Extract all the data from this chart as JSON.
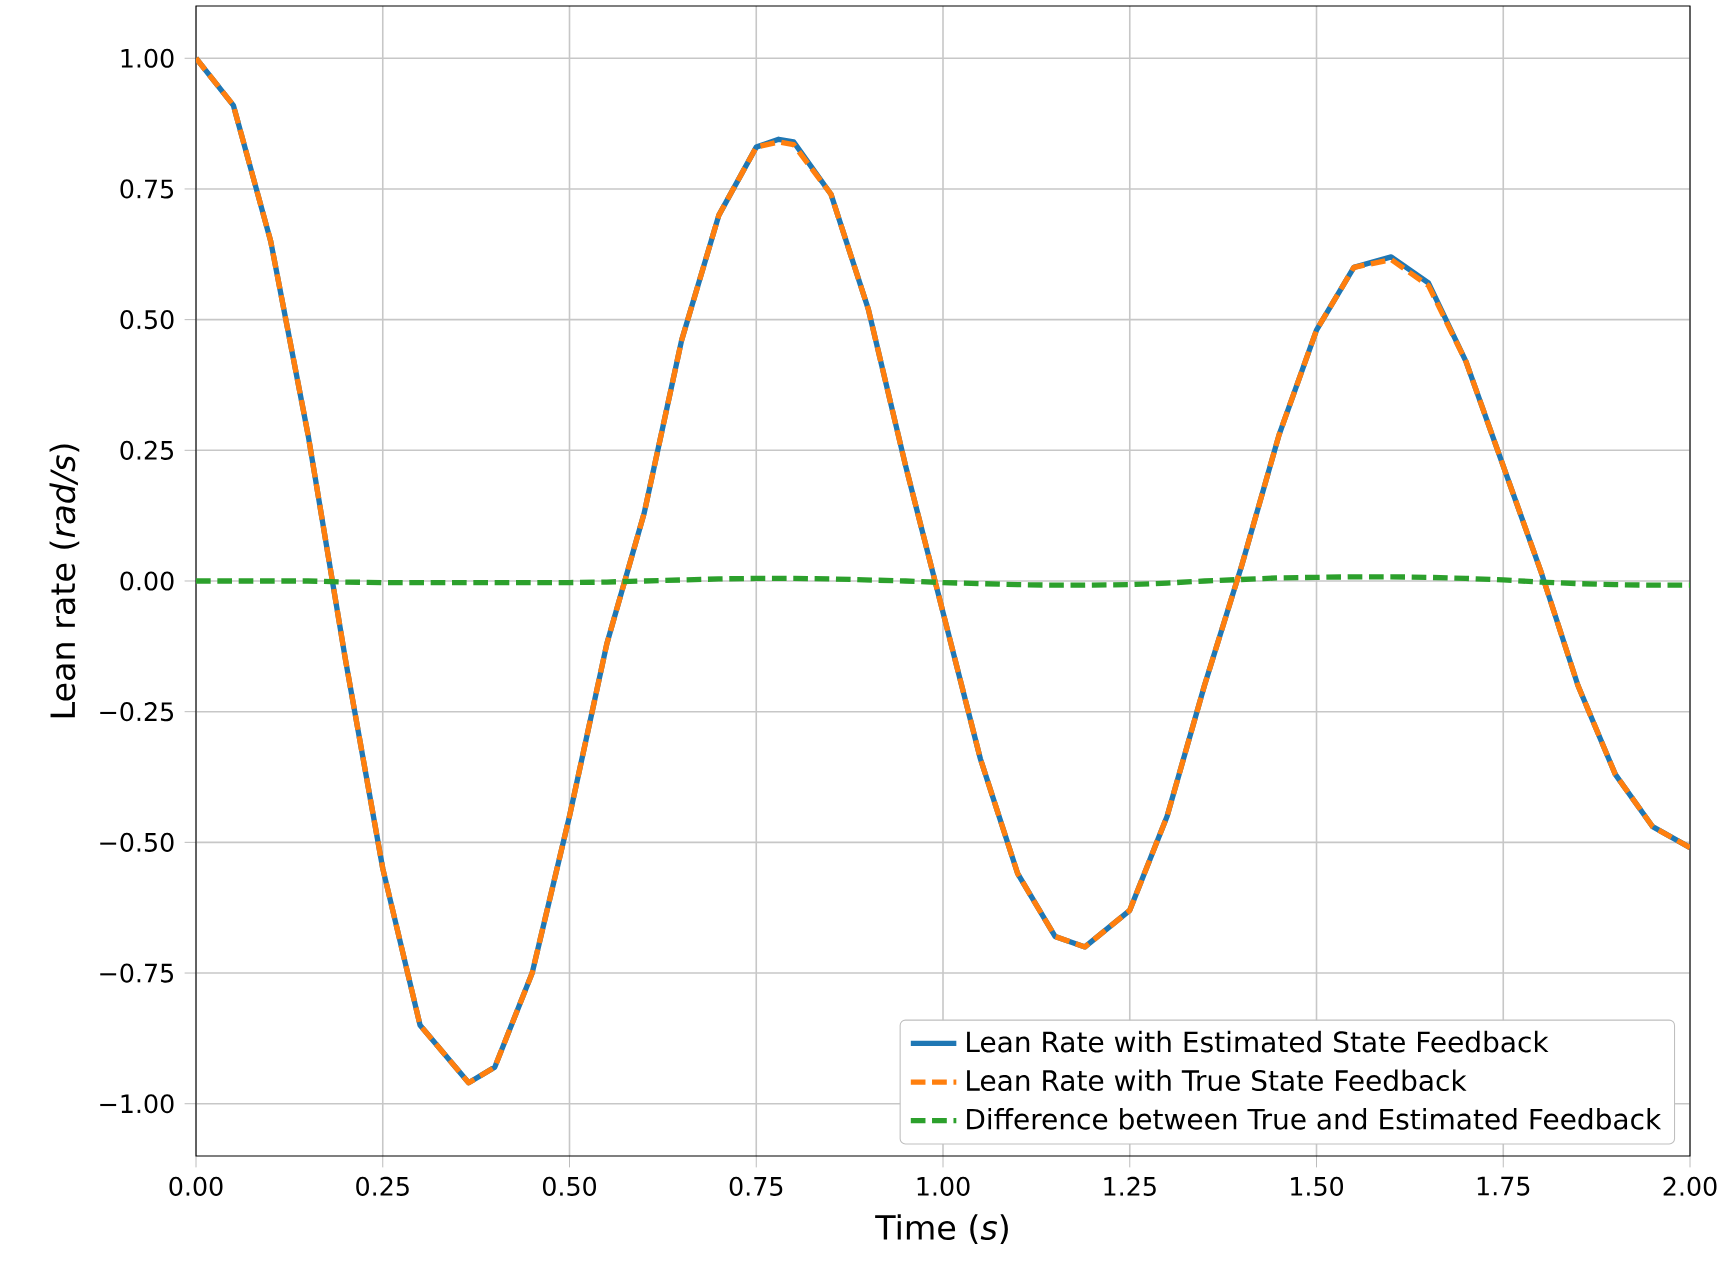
{
  "chart_data": {
    "type": "line",
    "xlabel": "Time (*s*)",
    "ylabel": "Lean rate (*rad/s*)",
    "xlim": [
      0,
      2
    ],
    "ylim": [
      -1.1,
      1.1
    ],
    "xticks": [
      {
        "value": 0,
        "label": "0.00"
      },
      {
        "value": 0.25,
        "label": "0.25"
      },
      {
        "value": 0.5,
        "label": "0.50"
      },
      {
        "value": 0.75,
        "label": "0.75"
      },
      {
        "value": 1,
        "label": "1.00"
      },
      {
        "value": 1.25,
        "label": "1.25"
      },
      {
        "value": 1.5,
        "label": "1.50"
      },
      {
        "value": 1.75,
        "label": "1.75"
      },
      {
        "value": 2,
        "label": "2.00"
      }
    ],
    "yticks": [
      {
        "value": -1,
        "label": "−1.00"
      },
      {
        "value": -0.75,
        "label": "−0.75"
      },
      {
        "value": -0.5,
        "label": "−0.50"
      },
      {
        "value": -0.25,
        "label": "−0.25"
      },
      {
        "value": 0,
        "label": "0.00"
      },
      {
        "value": 0.25,
        "label": "0.25"
      },
      {
        "value": 0.5,
        "label": "0.50"
      },
      {
        "value": 0.75,
        "label": "0.75"
      },
      {
        "value": 1,
        "label": "1.00"
      }
    ],
    "x": [
      0,
      0.05,
      0.1,
      0.15,
      0.2,
      0.25,
      0.3,
      0.365,
      0.4,
      0.45,
      0.5,
      0.55,
      0.6,
      0.65,
      0.7,
      0.75,
      0.78,
      0.8,
      0.85,
      0.9,
      0.95,
      1.0,
      1.05,
      1.1,
      1.15,
      1.19,
      1.25,
      1.3,
      1.35,
      1.4,
      1.45,
      1.5,
      1.55,
      1.6,
      1.65,
      1.7,
      1.75,
      1.8,
      1.85,
      1.9,
      1.95,
      2.0
    ],
    "series": [
      {
        "name": "Lean Rate with Estimated State Feedback",
        "color": "#1f77b4",
        "line_style": "solid",
        "values": [
          1.0,
          0.91,
          0.65,
          0.28,
          -0.15,
          -0.55,
          -0.85,
          -0.96,
          -0.93,
          -0.75,
          -0.45,
          -0.12,
          0.13,
          0.46,
          0.7,
          0.83,
          0.845,
          0.84,
          0.74,
          0.52,
          0.22,
          -0.06,
          -0.34,
          -0.56,
          -0.68,
          -0.7,
          -0.63,
          -0.45,
          -0.2,
          0.03,
          0.28,
          0.48,
          0.6,
          0.62,
          0.57,
          0.42,
          0.22,
          0.02,
          -0.2,
          -0.37,
          -0.47,
          -0.51
        ]
      },
      {
        "name": "Lean Rate with True State Feedback",
        "color": "#ff7f0e",
        "line_style": "dashed",
        "values": [
          1.0,
          0.91,
          0.65,
          0.28,
          -0.15,
          -0.55,
          -0.85,
          -0.96,
          -0.93,
          -0.75,
          -0.45,
          -0.12,
          0.13,
          0.46,
          0.7,
          0.83,
          0.84,
          0.835,
          0.74,
          0.52,
          0.22,
          -0.06,
          -0.34,
          -0.56,
          -0.68,
          -0.7,
          -0.63,
          -0.45,
          -0.2,
          0.03,
          0.28,
          0.48,
          0.6,
          0.615,
          0.565,
          0.42,
          0.22,
          0.02,
          -0.2,
          -0.37,
          -0.47,
          -0.51
        ]
      },
      {
        "name": "Difference between True and Estimated Feedback",
        "color": "#2ca02c",
        "line_style": "dashed",
        "values": [
          0.0,
          0.0,
          0.0,
          0.0,
          -0.002,
          -0.003,
          -0.003,
          -0.003,
          -0.003,
          -0.003,
          -0.003,
          -0.002,
          0.0,
          0.002,
          0.004,
          0.005,
          0.005,
          0.005,
          0.004,
          0.002,
          0.0,
          -0.003,
          -0.005,
          -0.007,
          -0.008,
          -0.008,
          -0.007,
          -0.004,
          0.0,
          0.003,
          0.006,
          0.007,
          0.008,
          0.008,
          0.007,
          0.005,
          0.002,
          -0.002,
          -0.005,
          -0.007,
          -0.008,
          -0.008
        ]
      }
    ],
    "grid": true,
    "legend": "bottom right"
  }
}
